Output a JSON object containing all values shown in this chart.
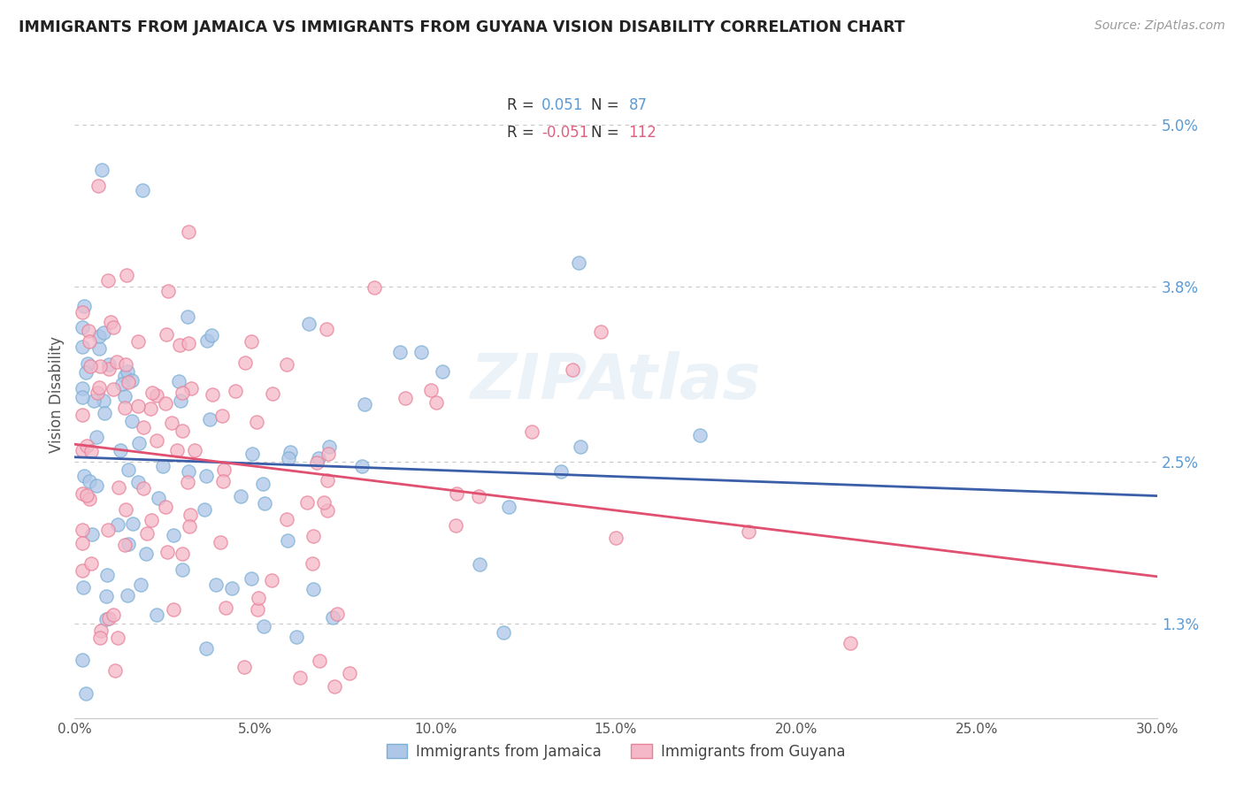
{
  "title": "IMMIGRANTS FROM JAMAICA VS IMMIGRANTS FROM GUYANA VISION DISABILITY CORRELATION CHART",
  "source": "Source: ZipAtlas.com",
  "ylabel": "Vision Disability",
  "xlim": [
    0.0,
    0.3
  ],
  "ylim": [
    0.006,
    0.054
  ],
  "yticks": [
    0.013,
    0.025,
    0.038,
    0.05
  ],
  "ytick_labels": [
    "1.3%",
    "2.5%",
    "3.8%",
    "5.0%"
  ],
  "xticks": [
    0.0,
    0.05,
    0.1,
    0.15,
    0.2,
    0.25,
    0.3
  ],
  "xtick_labels": [
    "0.0%",
    "5.0%",
    "10.0%",
    "15.0%",
    "20.0%",
    "25.0%",
    "30.0%"
  ],
  "jamaica_R": 0.051,
  "jamaica_N": 87,
  "guyana_R": -0.051,
  "guyana_N": 112,
  "jamaica_color": "#aec6e8",
  "jamaica_edge_color": "#7bafd4",
  "guyana_color": "#f4b8c8",
  "guyana_edge_color": "#e88098",
  "jamaica_line_color": "#3a5ea8",
  "guyana_line_color": "#e05070",
  "legend_label_jamaica": "Immigrants from Jamaica",
  "legend_label_guyana": "Immigrants from Guyana",
  "background_color": "#ffffff",
  "grid_color": "#c8c8c8",
  "watermark": "ZIPAtlas",
  "title_color": "#222222",
  "source_color": "#999999",
  "axis_label_color": "#555555",
  "tick_color": "#555555",
  "yaxis_tick_color": "#5b9bd5"
}
